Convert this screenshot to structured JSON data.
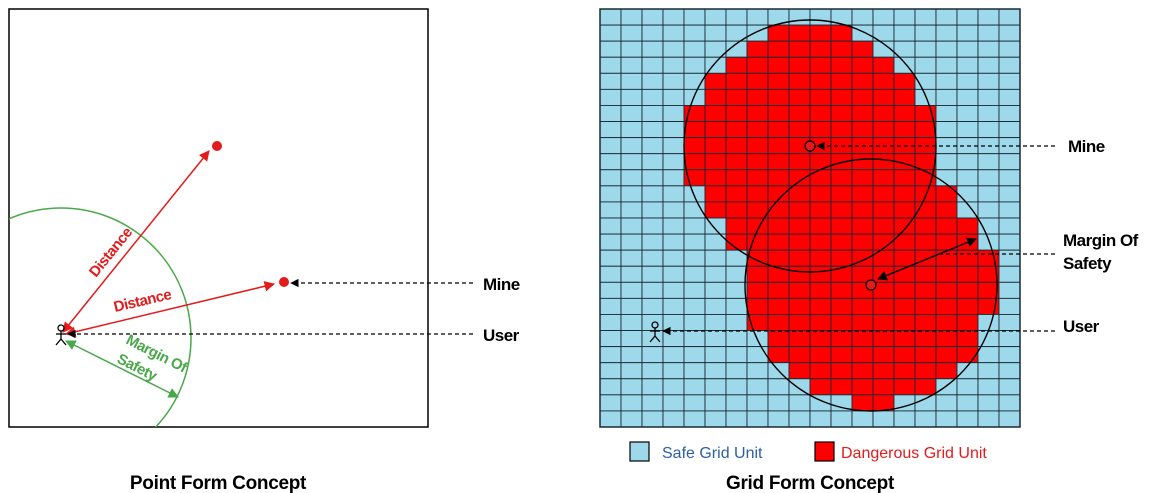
{
  "point_form": {
    "caption": "Point Form Concept",
    "distance_label_1": "Distance",
    "distance_label_2": "Distance",
    "margin_label_line1": "Margin Of",
    "margin_label_line2": "Safety",
    "mine_label": "Mine",
    "user_label": "User"
  },
  "grid_form": {
    "caption": "Grid Form Concept",
    "mine_label": "Mine",
    "margin_label_line1": "Margin Of",
    "margin_label_line2": "Safety",
    "user_label": "User",
    "grid_cols": 20,
    "grid_rows": 26
  },
  "legend": {
    "safe_label": "Safe Grid Unit",
    "danger_label": "Dangerous Grid Unit",
    "safe_color": "#9dd9ea",
    "danger_color": "#ff0000",
    "safe_text_color": "#2b5fa8",
    "danger_text_color": "#e31b1b"
  },
  "colors": {
    "red": "#e31b1b",
    "green": "#4aa84a",
    "grid_line": "#1a2a33"
  }
}
